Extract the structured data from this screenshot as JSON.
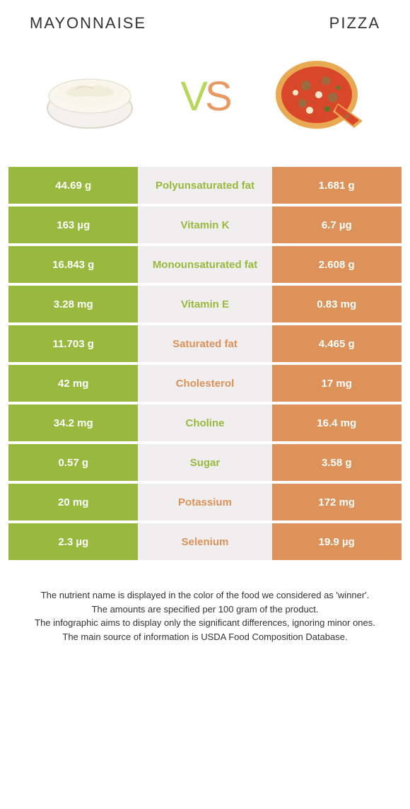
{
  "foods": {
    "left": {
      "name": "MAYONNAISE",
      "color": "#99b93e"
    },
    "right": {
      "name": "PIZZA",
      "color": "#dc9258"
    }
  },
  "vs_text": "VS",
  "colors": {
    "green": "#99b93e",
    "orange": "#dc9258",
    "mid_bg": "#f0eeee",
    "page_bg": "#ffffff",
    "text_dark": "#333333"
  },
  "rows": [
    {
      "nutrient": "Polyunsaturated fat",
      "left": "44.69 g",
      "right": "1.681 g",
      "winner": "left"
    },
    {
      "nutrient": "Vitamin K",
      "left": "163 µg",
      "right": "6.7 µg",
      "winner": "left"
    },
    {
      "nutrient": "Monounsaturated fat",
      "left": "16.843 g",
      "right": "2.608 g",
      "winner": "left"
    },
    {
      "nutrient": "Vitamin E",
      "left": "3.28 mg",
      "right": "0.83 mg",
      "winner": "left"
    },
    {
      "nutrient": "Saturated fat",
      "left": "11.703 g",
      "right": "4.465 g",
      "winner": "right"
    },
    {
      "nutrient": "Cholesterol",
      "left": "42 mg",
      "right": "17 mg",
      "winner": "right"
    },
    {
      "nutrient": "Choline",
      "left": "34.2 mg",
      "right": "16.4 mg",
      "winner": "left"
    },
    {
      "nutrient": "Sugar",
      "left": "0.57 g",
      "right": "3.58 g",
      "winner": "left"
    },
    {
      "nutrient": "Potassium",
      "left": "20 mg",
      "right": "172 mg",
      "winner": "right"
    },
    {
      "nutrient": "Selenium",
      "left": "2.3 µg",
      "right": "19.9 µg",
      "winner": "right"
    }
  ],
  "footer": [
    "The nutrient name is displayed in the color of the food we considered as 'winner'.",
    "The amounts are specified per 100 gram of the product.",
    "The infographic aims to display only the significant differences, ignoring minor ones.",
    "The main source of information is USDA Food Composition Database."
  ]
}
